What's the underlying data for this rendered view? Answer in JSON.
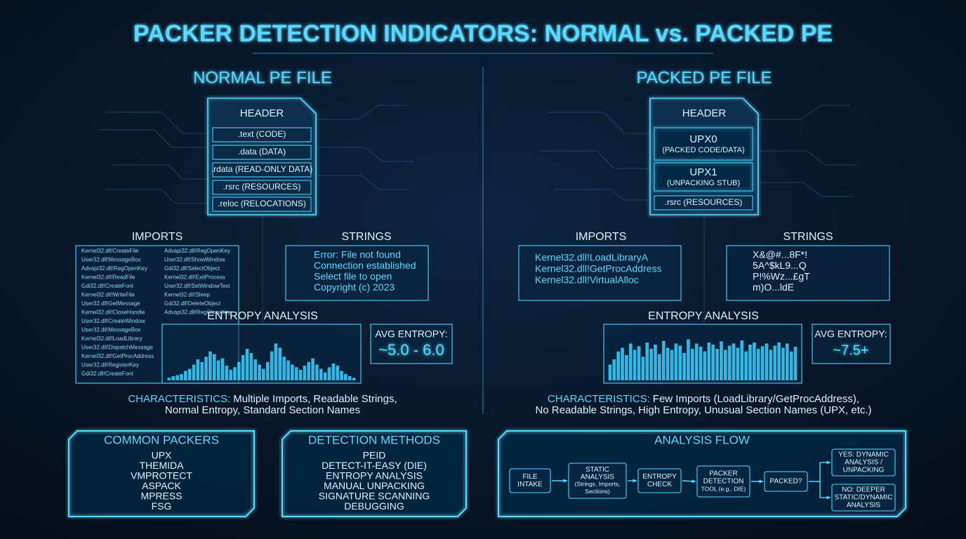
{
  "title": "PACKER DETECTION INDICATORS: NORMAL vs. PACKED PE",
  "normal": {
    "heading": "NORMAL PE FILE",
    "sections": [
      "HEADER",
      ".text (CODE)",
      ".data (DATA)",
      ".rdata (READ-ONLY DATA)",
      ".rsrc (RESOURCES)",
      ".reloc (RELOCATIONS)"
    ],
    "imports_label": "IMPORTS",
    "imports_left": [
      "Kernel32.dll!CreateFile",
      "User32.dll!MessageBox",
      "Advapi32.dll!RegOpenKey",
      "Kernel32.dll!ReadFile",
      "Gdi32.dll!CreateFont",
      "Kernel32.dll!WriteFile",
      "User32.dll!GetMessage",
      "Kernel32.dll!CloseHandle",
      "User32.dll!CreateWindow",
      "User32.dll!MessageBox",
      "Kernel32.dll!LoadLibrary",
      "User32.dll!DispatchMessage",
      "Kernel32.dll!GetProcAddress",
      "User32.dll!RegisterKey",
      "Gdi32.dll!CreateFont"
    ],
    "imports_right": [
      "Advapi32.dll!RegOpenKey",
      "User32.dll!ShowWindow",
      "Gdi32.dll!SelectObject",
      "Kernel32.dll!ExitProcess",
      "User32.dll!SetWindowText",
      "Kernel32.dll!Sleep",
      "Gdi32.dll!DeleteObject",
      "Advapi32.dll!RegCloseKey"
    ],
    "strings_label": "STRINGS",
    "strings": [
      "Error: File not found",
      "Connection established",
      "Select file to open",
      "Copyright (c) 2023"
    ],
    "entropy_label": "ENTROPY ANALYSIS",
    "entropy_bars": [
      5,
      8,
      10,
      12,
      18,
      22,
      30,
      40,
      35,
      45,
      55,
      50,
      38,
      42,
      28,
      20,
      25,
      35,
      48,
      60,
      52,
      40,
      30,
      22,
      35,
      55,
      70,
      62,
      45,
      38,
      30,
      25,
      20,
      28,
      35,
      42,
      30,
      22,
      15,
      25,
      32,
      28,
      18,
      12,
      8,
      5
    ],
    "avg_entropy_label": "AVG ENTROPY:",
    "avg_entropy": "~5.0 - 6.0",
    "characteristics_label": "CHARACTERISTICS:",
    "characteristics_1": "Multiple Imports, Readable Strings,",
    "characteristics_2": "Normal Entropy, Standard Section Names"
  },
  "packed": {
    "heading": "PACKED PE FILE",
    "header": "HEADER",
    "upx0": [
      "UPX0",
      "(PACKED CODE/DATA)"
    ],
    "upx1": [
      "UPX1",
      "(UNPACKING STUB)"
    ],
    "rsrc": ".rsrc (RESOURCES)",
    "imports_label": "IMPORTS",
    "imports": [
      "Kernel32.dll!LoadLibraryA",
      "Kernel32.dll!GetProcAddress",
      "Kernel32.dll!VirtualAlloc"
    ],
    "strings_label": "STRINGS",
    "strings": [
      "X&@#...8F*!",
      "5A^$kL9...Q",
      "P!%Wz...£gT",
      "m)O...ldE"
    ],
    "entropy_label": "ENTROPY ANALYSIS",
    "entropy_bars": [
      30,
      40,
      55,
      62,
      48,
      70,
      58,
      65,
      45,
      72,
      60,
      68,
      50,
      75,
      62,
      58,
      70,
      66,
      52,
      78,
      60,
      70,
      64,
      55,
      72,
      68,
      60,
      74,
      58,
      66,
      70,
      62,
      76,
      55,
      68,
      72,
      60,
      65,
      70,
      58,
      66,
      72,
      62,
      70,
      55,
      64
    ],
    "avg_entropy_label": "AVG ENTROPY:",
    "avg_entropy": "~7.5+",
    "characteristics_label": "CHARACTERISTICS:",
    "characteristics_1": "Few Imports (LoadLibrary/GetProcAddress),",
    "characteristics_2": "No Readable Strings, High Entropy, Unusual Section Names (UPX, etc.)"
  },
  "common_packers": {
    "title": "COMMON PACKERS",
    "items": [
      "UPX",
      "THEMIDA",
      "VMPROTECT",
      "ASPACK",
      "MPRESS",
      "FSG"
    ]
  },
  "detection_methods": {
    "title": "DETECTION METHODS",
    "items": [
      "PEID",
      "DETECT-IT-EASY (DIE)",
      "ENTROPY ANALYSIS",
      "MANUAL UNPACKING",
      "SIGNATURE SCANNING",
      "DEBUGGING"
    ]
  },
  "analysis_flow": {
    "title": "ANALYSIS FLOW",
    "nodes": [
      [
        "FILE",
        "INTAKE"
      ],
      [
        "STATIC",
        "ANALYSIS",
        "(Strings, Imports,",
        "Sections)"
      ],
      [
        "ENTROPY",
        "CHECK"
      ],
      [
        "PACKER",
        "DETECTION",
        "TOOL (e.g., DIE)"
      ],
      [
        "PACKED?"
      ]
    ],
    "yes": [
      "YES: DYNAMIC",
      "ANALYSIS /",
      "UNPACKING"
    ],
    "no": [
      "NO: DEEPER",
      "STATIC/DYNAMIC",
      "ANALYSIS"
    ]
  }
}
